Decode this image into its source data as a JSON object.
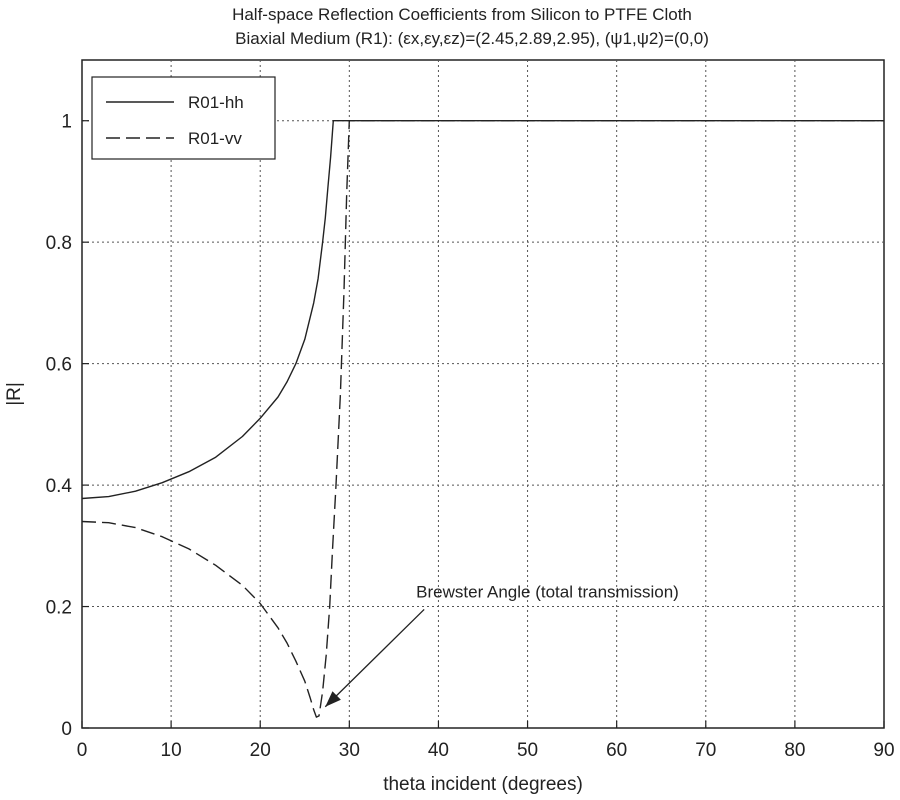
{
  "chart_data": {
    "type": "line",
    "title": {
      "line1": "Half-space Reflection Coefficients from Silicon to PTFE Cloth",
      "line2": "Biaxial Medium (R1): (εx,εy,εz)=(2.45,2.89,2.95), (ψ1,ψ2)=(0,0)"
    },
    "xlabel": "theta incident (degrees)",
    "ylabel": "|R|",
    "xlim": [
      0,
      90
    ],
    "ylim": [
      0,
      1.1
    ],
    "xticks": [
      0,
      10,
      20,
      30,
      40,
      50,
      60,
      70,
      80,
      90
    ],
    "yticks": [
      0,
      0.2,
      0.4,
      0.6,
      0.8,
      1
    ],
    "ytick_labels": [
      "0",
      "0.2",
      "0.4",
      "0.6",
      "0.8",
      "1"
    ],
    "grid": true,
    "legend_position": "top-left",
    "series": [
      {
        "name": "R01-hh",
        "style": "solid",
        "x": [
          0,
          3,
          6,
          9,
          12,
          15,
          18,
          20,
          22,
          23,
          24,
          25,
          26,
          26.5,
          27,
          27.3,
          27.6,
          27.9,
          28.1,
          28.2,
          30,
          40,
          50,
          60,
          70,
          80,
          90
        ],
        "y": [
          0.378,
          0.381,
          0.39,
          0.404,
          0.422,
          0.446,
          0.48,
          0.51,
          0.545,
          0.57,
          0.6,
          0.64,
          0.7,
          0.74,
          0.8,
          0.84,
          0.89,
          0.94,
          0.98,
          1.0,
          1.0,
          1.0,
          1.0,
          1.0,
          1.0,
          1.0,
          1.0
        ]
      },
      {
        "name": "R01-vv",
        "style": "dashed",
        "x": [
          0,
          3,
          6,
          9,
          12,
          15,
          18,
          20,
          22,
          23,
          24,
          25,
          25.6,
          26.0,
          26.3,
          26.6,
          27.0,
          27.4,
          27.8,
          28.1,
          28.5,
          29.0,
          29.4,
          29.7,
          30,
          40,
          50,
          60,
          70,
          80,
          90
        ],
        "y": [
          0.34,
          0.338,
          0.33,
          0.315,
          0.295,
          0.268,
          0.235,
          0.205,
          0.165,
          0.14,
          0.11,
          0.077,
          0.05,
          0.03,
          0.018,
          0.02,
          0.06,
          0.12,
          0.2,
          0.29,
          0.4,
          0.55,
          0.72,
          0.88,
          1.0,
          1.0,
          1.0,
          1.0,
          1.0,
          1.0,
          1.0
        ]
      }
    ],
    "annotations": [
      {
        "text": "Brewster Angle (total transmission)",
        "text_x": 37.5,
        "text_y": 0.215,
        "arrow_to_x": 27.3,
        "arrow_to_y": 0.035
      }
    ]
  }
}
